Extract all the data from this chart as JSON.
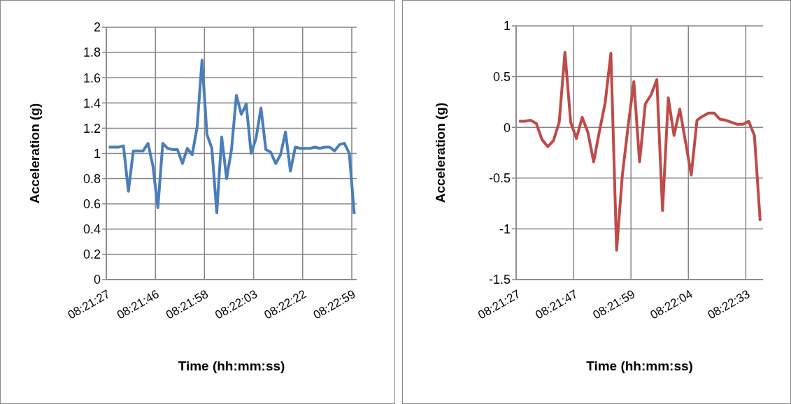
{
  "chart_data": [
    {
      "type": "line",
      "xlabel": "Time (hh:mm:ss)",
      "ylabel": "Acceleration (g)",
      "categories": [
        "08:21:27",
        null,
        null,
        null,
        null,
        null,
        null,
        null,
        null,
        null,
        "08:21:46",
        null,
        null,
        null,
        null,
        null,
        null,
        null,
        null,
        null,
        "08:21:58",
        null,
        null,
        null,
        null,
        null,
        null,
        null,
        null,
        null,
        "08:22:03",
        null,
        null,
        null,
        null,
        null,
        null,
        null,
        null,
        null,
        "08:22:22",
        null,
        null,
        null,
        null,
        null,
        null,
        null,
        null,
        null,
        "08:22:59"
      ],
      "series": [
        {
          "color": "#4a7ebb",
          "values": [
            1.05,
            1.05,
            1.05,
            1.06,
            0.7,
            1.02,
            1.02,
            1.02,
            1.08,
            0.9,
            0.57,
            1.08,
            1.04,
            1.03,
            1.03,
            0.92,
            1.04,
            0.99,
            1.21,
            1.74,
            1.15,
            1.04,
            0.53,
            1.13,
            0.8,
            1.03,
            1.46,
            1.31,
            1.39,
            1.0,
            1.12,
            1.36,
            1.03,
            1.01,
            0.92,
            0.99,
            1.17,
            0.86,
            1.05,
            1.04,
            1.04,
            1.04,
            1.05,
            1.04,
            1.05,
            1.05,
            1.02,
            1.07,
            1.08,
            1.0,
            0.52
          ]
        }
      ],
      "ylim": [
        0,
        2
      ],
      "yticks": [
        0,
        0.2,
        0.4,
        0.6,
        0.8,
        1,
        1.2,
        1.4,
        1.6,
        1.8,
        2
      ],
      "grid": true
    },
    {
      "type": "line",
      "xlabel": "Time (hh:mm:ss)",
      "ylabel": "Acceleration (g)",
      "categories": [
        "08:21:27",
        null,
        null,
        null,
        null,
        null,
        null,
        null,
        null,
        null,
        "08:21:47",
        null,
        null,
        null,
        null,
        null,
        null,
        null,
        null,
        null,
        "08:21:59",
        null,
        null,
        null,
        null,
        null,
        null,
        null,
        null,
        null,
        "08:22:04",
        null,
        null,
        null,
        null,
        null,
        null,
        null,
        null,
        null,
        "08:22:33",
        null,
        null
      ],
      "series": [
        {
          "color": "#be4b48",
          "values": [
            0.06,
            0.06,
            0.07,
            0.04,
            -0.12,
            -0.19,
            -0.13,
            0.05,
            0.74,
            0.05,
            -0.11,
            0.1,
            -0.05,
            -0.34,
            -0.04,
            0.24,
            0.73,
            -1.21,
            -0.47,
            0.01,
            0.45,
            -0.34,
            0.23,
            0.32,
            0.47,
            -0.82,
            0.29,
            -0.08,
            0.18,
            -0.14,
            -0.47,
            0.07,
            0.11,
            0.14,
            0.14,
            0.08,
            0.07,
            0.05,
            0.03,
            0.03,
            0.06,
            -0.08,
            -0.92
          ]
        }
      ],
      "ylim": [
        -1.5,
        1
      ],
      "yticks": [
        -1.5,
        -1,
        -0.5,
        0,
        0.5,
        1
      ],
      "grid": true
    }
  ]
}
